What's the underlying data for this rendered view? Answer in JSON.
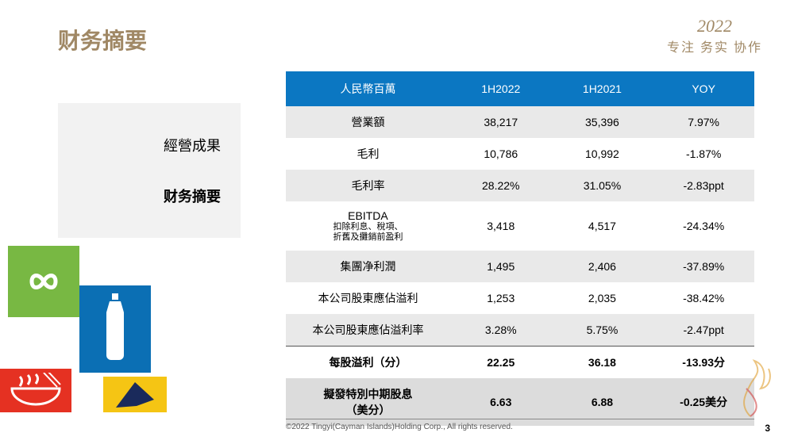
{
  "colors": {
    "title": "#a08865",
    "tag": "#a08865",
    "header_bg": "#0b77c2",
    "row_alt_bg": "#e9e9e9",
    "last_row_bg": "#dcdcdc",
    "green": "#78b843",
    "white": "#ffffff",
    "red": "#e53122",
    "blue": "#0b6fb4",
    "yellow": "#f5c514"
  },
  "title": "财务摘要",
  "top_right": {
    "year": "2022",
    "tagline": "专注 务实 协作"
  },
  "sidebar": {
    "item1": "經營成果",
    "item2": "财务摘要"
  },
  "table": {
    "headers": {
      "c1": "人民幣百萬",
      "c2": "1H2022",
      "c3": "1H2021",
      "c4": "YOY"
    },
    "rows": [
      {
        "label": "營業額",
        "a": "38,217",
        "b": "35,396",
        "y": "7.97%",
        "alt": true
      },
      {
        "label": "毛利",
        "a": "10,786",
        "b": "10,992",
        "y": "-1.87%",
        "alt": false
      },
      {
        "label": "毛利率",
        "a": "28.22%",
        "b": "31.05%",
        "y": "-2.83ppt",
        "alt": true
      },
      {
        "label": "EBITDA",
        "sub": "扣除利息、稅項、\n折舊及攤銷前盈利",
        "a": "3,418",
        "b": "4,517",
        "y": "-24.34%",
        "alt": false
      },
      {
        "label": "集團净利潤",
        "a": "1,495",
        "b": "2,406",
        "y": "-37.89%",
        "alt": true
      },
      {
        "label": "本公司股東應佔溢利",
        "a": "1,253",
        "b": "2,035",
        "y": "-38.42%",
        "alt": false
      },
      {
        "label": "本公司股東應佔溢利率",
        "a": "3.28%",
        "b": "5.75%",
        "y": "-2.47ppt",
        "alt": true
      }
    ],
    "bold_row": {
      "label": "每股溢利（分）",
      "a": "22.25",
      "b": "36.18",
      "y": "-13.93分"
    },
    "last_row": {
      "label": "擬發特別中期股息\n（美分）",
      "a": "6.63",
      "b": "6.88",
      "y": "-0.25美分"
    }
  },
  "footer": "©2022 Tingyi(Cayman Islands)Holding Corp., All rights reserved.",
  "page_num": "3"
}
